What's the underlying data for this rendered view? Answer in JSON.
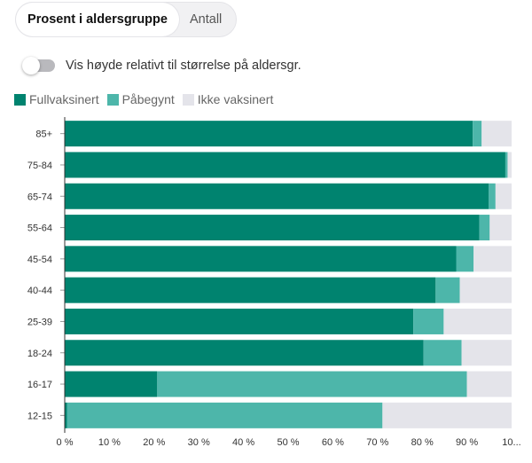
{
  "tabs": {
    "percent_label": "Prosent i aldersgruppe",
    "count_label": "Antall"
  },
  "toggle": {
    "label": "Vis høyde relativt til størrelse på aldersgr.",
    "on": false
  },
  "legend": [
    {
      "label": "Fullvaksinert",
      "color": "#00836f"
    },
    {
      "label": "Påbegynt",
      "color": "#4db6aa"
    },
    {
      "label": "Ikke vaksinert",
      "color": "#e4e4ea"
    }
  ],
  "chart_data": {
    "type": "bar",
    "orientation": "horizontal",
    "stacked": true,
    "categories": [
      "85+",
      "75-84",
      "65-74",
      "55-64",
      "45-54",
      "40-44",
      "25-39",
      "18-24",
      "16-17",
      "12-15"
    ],
    "series": [
      {
        "name": "Fullvaksinert",
        "color": "#00836f",
        "values": [
          91.3,
          98.6,
          94.9,
          92.8,
          87.6,
          83.0,
          78.0,
          80.3,
          20.7,
          0.5
        ]
      },
      {
        "name": "Påbegynt",
        "color": "#4db6aa",
        "values": [
          2.0,
          0.5,
          1.5,
          2.3,
          3.9,
          5.4,
          6.8,
          8.5,
          69.3,
          70.6
        ]
      },
      {
        "name": "Ikke vaksinert",
        "color": "#e4e4ea",
        "values": [
          6.7,
          0.9,
          3.6,
          4.9,
          8.5,
          11.6,
          15.2,
          11.2,
          10.0,
          28.9
        ]
      }
    ],
    "xlim": [
      0,
      100
    ],
    "x_ticks": [
      "0 %",
      "10 %",
      "20 %",
      "30 %",
      "40 %",
      "50 %",
      "60 %",
      "70 %",
      "80 %",
      "90 %",
      "10..."
    ],
    "x_tick_values": [
      0,
      10,
      20,
      30,
      40,
      50,
      60,
      70,
      80,
      90,
      100
    ],
    "title": "",
    "xlabel": "",
    "ylabel": ""
  }
}
